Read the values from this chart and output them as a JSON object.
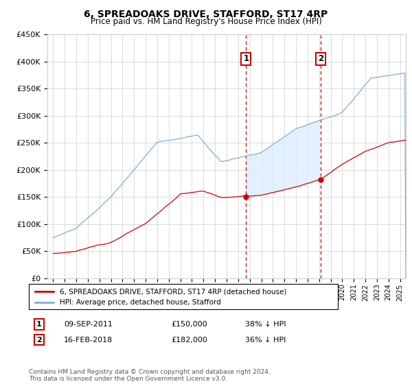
{
  "title": "6, SPREADOAKS DRIVE, STAFFORD, ST17 4RP",
  "subtitle": "Price paid vs. HM Land Registry's House Price Index (HPI)",
  "ylim": [
    0,
    450000
  ],
  "xlim_start": 1994.5,
  "xlim_end": 2025.5,
  "point1_x": 2011.69,
  "point1_y": 150000,
  "point1_label": "1",
  "point1_date": "09-SEP-2011",
  "point1_price": "£150,000",
  "point1_hpi": "38% ↓ HPI",
  "point2_x": 2018.12,
  "point2_y": 182000,
  "point2_label": "2",
  "point2_date": "16-FEB-2018",
  "point2_price": "£182,000",
  "point2_hpi": "36% ↓ HPI",
  "legend_line1": "6, SPREADOAKS DRIVE, STAFFORD, ST17 4RP (detached house)",
  "legend_line2": "HPI: Average price, detached house, Stafford",
  "footnote": "Contains HM Land Registry data © Crown copyright and database right 2024.\nThis data is licensed under the Open Government Licence v3.0.",
  "red_color": "#cc0000",
  "blue_color": "#7aaed6",
  "shade_color": "#ddeeff",
  "grid_color": "#cccccc",
  "background_color": "#ffffff"
}
